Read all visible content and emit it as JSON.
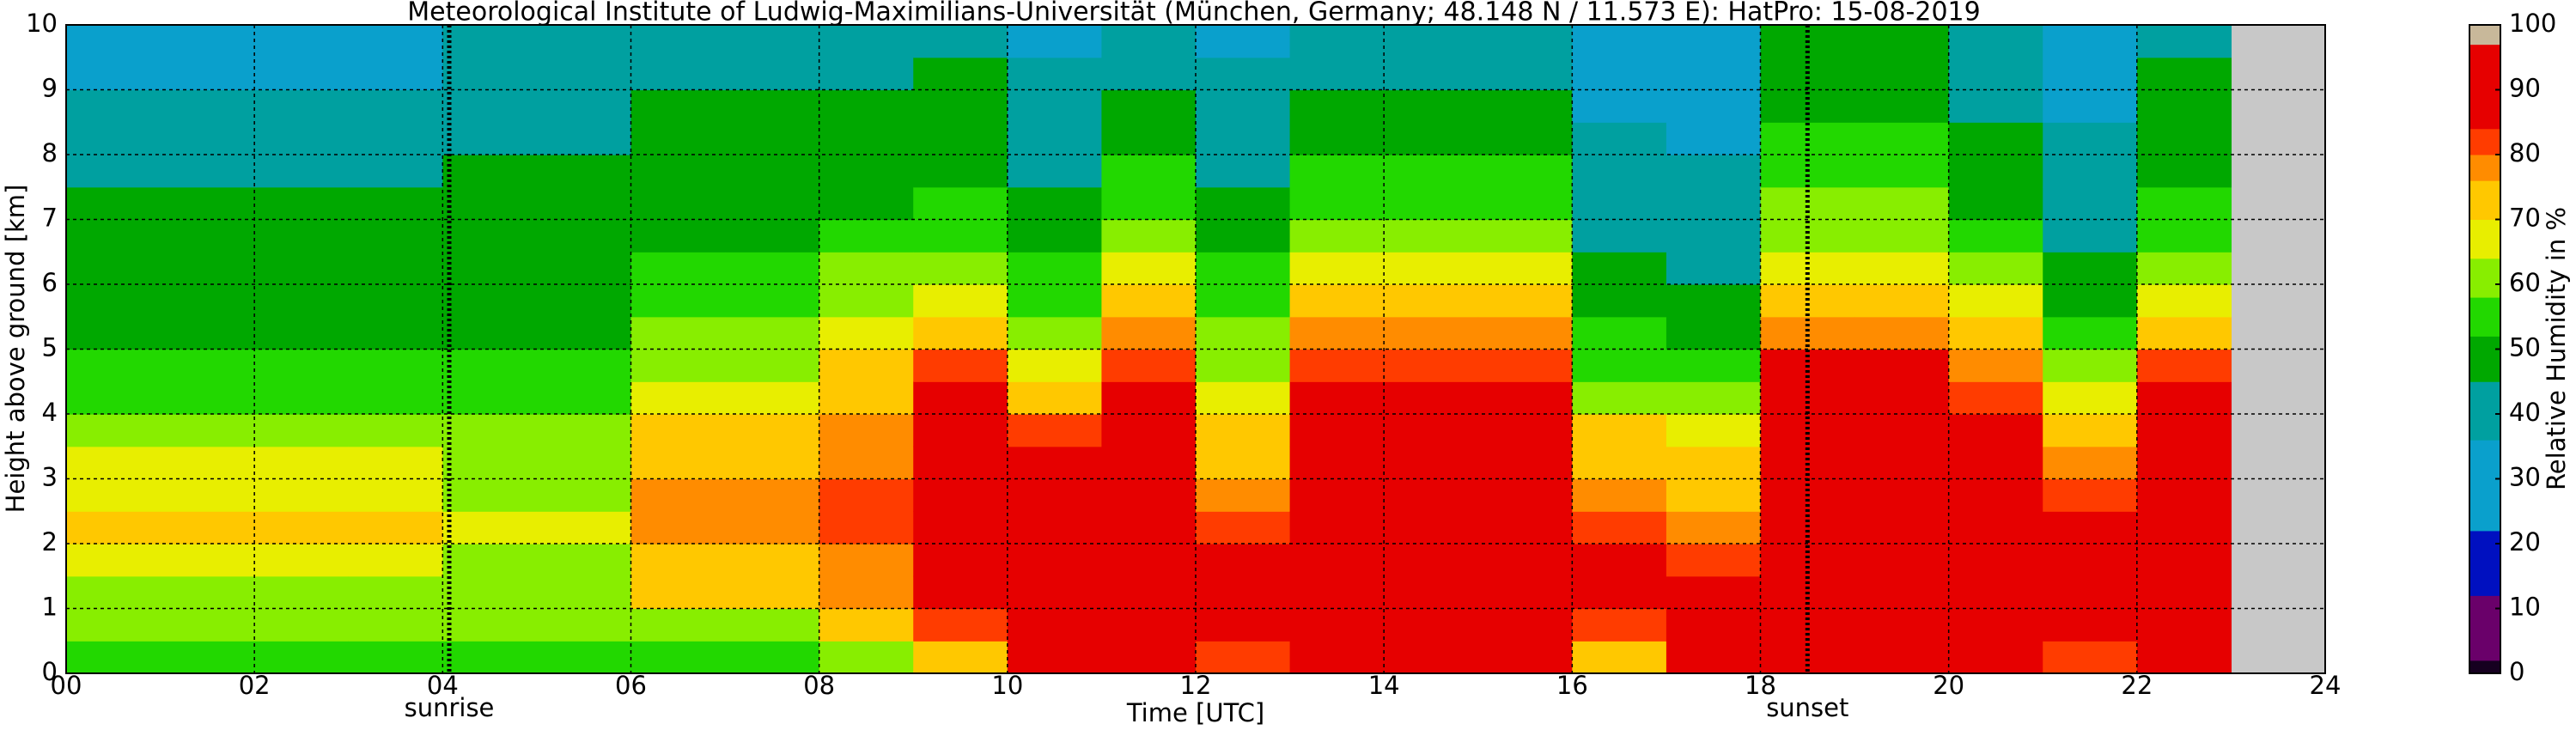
{
  "chart_data": {
    "type": "heatmap",
    "title": "Meteorological Institute of Ludwig-Maximilians-Universität (München, Germany; 48.148 N / 11.573 E):    HatPro: 15-08-2019",
    "xlabel": "Time [UTC]",
    "ylabel": "Height above ground [km]",
    "colorbar_label": "Relative Humidity in %",
    "xlim": [
      0,
      24
    ],
    "ylim": [
      0,
      10
    ],
    "xticks": [
      {
        "value": 0,
        "label": "00"
      },
      {
        "value": 2,
        "label": "02"
      },
      {
        "value": 4,
        "label": "04"
      },
      {
        "value": 6,
        "label": "06"
      },
      {
        "value": 8,
        "label": "08"
      },
      {
        "value": 10,
        "label": "10"
      },
      {
        "value": 12,
        "label": "12"
      },
      {
        "value": 14,
        "label": "14"
      },
      {
        "value": 16,
        "label": "16"
      },
      {
        "value": 18,
        "label": "18"
      },
      {
        "value": 20,
        "label": "20"
      },
      {
        "value": 22,
        "label": "22"
      },
      {
        "value": 24,
        "label": "24"
      }
    ],
    "yticks": [
      0,
      1,
      2,
      3,
      4,
      5,
      6,
      7,
      8,
      9,
      10
    ],
    "grid": true,
    "annotations": [
      {
        "x": 4.07,
        "label": "sunrise"
      },
      {
        "x": 18.5,
        "label": "sunset"
      }
    ],
    "levels": [
      0,
      2,
      12,
      22,
      36,
      45,
      52,
      58,
      64,
      70,
      76,
      80,
      84,
      97,
      100
    ],
    "level_colors": [
      "#160020",
      "#6a006a",
      "#0010c0",
      "#0aa0cc",
      "#00a0a0",
      "#00a800",
      "#22d800",
      "#88ee00",
      "#e8ee00",
      "#ffc800",
      "#ff8c00",
      "#ff3c00",
      "#e60000",
      "#c8b89a"
    ],
    "cbticks": [
      0,
      10,
      20,
      30,
      40,
      50,
      60,
      70,
      80,
      90,
      100
    ],
    "xbins": [
      0,
      1,
      2,
      3,
      4,
      5,
      6,
      7,
      8,
      9,
      10,
      11,
      12,
      13,
      14,
      15,
      16,
      17,
      18,
      19,
      20,
      21,
      22,
      23
    ],
    "ybins": [
      0,
      0.5,
      1,
      1.5,
      2,
      2.5,
      3,
      3.5,
      4,
      4.5,
      5,
      5.5,
      6,
      6.5,
      7,
      7.5,
      8,
      8.5,
      9,
      9.5,
      10
    ],
    "z": [
      [
        55,
        58,
        62,
        66,
        70,
        68,
        64,
        60,
        55,
        52,
        50,
        50,
        48,
        48,
        45,
        43,
        40,
        38,
        35,
        34
      ],
      [
        55,
        58,
        62,
        66,
        70,
        68,
        64,
        60,
        55,
        52,
        50,
        50,
        48,
        48,
        45,
        43,
        40,
        38,
        35,
        34
      ],
      [
        55,
        58,
        62,
        66,
        70,
        68,
        64,
        60,
        55,
        52,
        50,
        50,
        48,
        48,
        45,
        43,
        40,
        38,
        35,
        34
      ],
      [
        55,
        58,
        62,
        66,
        70,
        68,
        64,
        60,
        55,
        52,
        50,
        50,
        48,
        48,
        45,
        43,
        40,
        38,
        35,
        34
      ],
      [
        56,
        58,
        60,
        62,
        64,
        62,
        60,
        58,
        55,
        52,
        50,
        50,
        48,
        48,
        47,
        45,
        44,
        42,
        38,
        36
      ],
      [
        56,
        58,
        60,
        62,
        64,
        62,
        60,
        58,
        55,
        52,
        50,
        50,
        48,
        48,
        47,
        45,
        44,
        42,
        38,
        36
      ],
      [
        52,
        62,
        70,
        75,
        76,
        76,
        74,
        70,
        66,
        62,
        58,
        55,
        52,
        50,
        48,
        47,
        46,
        45,
        44,
        42
      ],
      [
        52,
        62,
        70,
        75,
        76,
        76,
        74,
        70,
        66,
        62,
        58,
        55,
        52,
        50,
        48,
        47,
        46,
        45,
        44,
        42
      ],
      [
        62,
        74,
        78,
        79,
        80,
        80,
        79,
        78,
        74,
        70,
        66,
        62,
        58,
        54,
        50,
        48,
        46,
        45,
        44,
        42
      ],
      [
        72,
        82,
        88,
        90,
        90,
        91,
        90,
        88,
        86,
        80,
        74,
        68,
        62,
        56,
        52,
        50,
        49,
        48,
        46,
        44
      ],
      [
        85,
        92,
        94,
        94,
        92,
        90,
        86,
        80,
        72,
        66,
        60,
        56,
        52,
        48,
        45,
        42,
        40,
        38,
        36,
        35
      ],
      [
        86,
        92,
        94,
        95,
        95,
        94,
        93,
        92,
        88,
        82,
        76,
        72,
        66,
        60,
        56,
        52,
        48,
        46,
        44,
        42
      ],
      [
        80,
        86,
        88,
        86,
        82,
        78,
        74,
        70,
        66,
        62,
        58,
        55,
        52,
        48,
        45,
        42,
        40,
        38,
        36,
        35
      ],
      [
        86,
        92,
        94,
        95,
        95,
        94,
        93,
        92,
        88,
        82,
        76,
        72,
        66,
        60,
        56,
        52,
        48,
        46,
        44,
        42
      ],
      [
        86,
        92,
        94,
        95,
        95,
        94,
        93,
        92,
        88,
        82,
        76,
        72,
        66,
        60,
        56,
        52,
        48,
        46,
        44,
        42
      ],
      [
        86,
        92,
        94,
        95,
        95,
        94,
        93,
        92,
        88,
        82,
        76,
        72,
        66,
        60,
        56,
        52,
        48,
        46,
        44,
        42
      ],
      [
        70,
        80,
        84,
        84,
        82,
        78,
        74,
        70,
        62,
        56,
        52,
        48,
        45,
        42,
        40,
        38,
        36,
        35,
        34,
        33
      ],
      [
        88,
        90,
        84,
        80,
        76,
        74,
        70,
        66,
        60,
        55,
        50,
        46,
        42,
        40,
        38,
        36,
        35,
        34,
        33,
        33
      ],
      [
        90,
        92,
        93,
        94,
        94,
        93,
        92,
        90,
        88,
        84,
        78,
        72,
        66,
        62,
        58,
        54,
        52,
        50,
        48,
        47
      ],
      [
        90,
        92,
        93,
        94,
        94,
        93,
        92,
        90,
        88,
        84,
        78,
        72,
        66,
        62,
        58,
        54,
        52,
        50,
        48,
        47
      ],
      [
        88,
        92,
        94,
        94,
        93,
        92,
        90,
        86,
        82,
        76,
        70,
        64,
        58,
        54,
        50,
        48,
        46,
        44,
        42,
        40
      ],
      [
        82,
        86,
        88,
        88,
        86,
        82,
        78,
        72,
        66,
        60,
        55,
        50,
        46,
        42,
        40,
        38,
        36,
        35,
        34,
        33
      ],
      [
        88,
        92,
        94,
        94,
        93,
        92,
        90,
        88,
        84,
        80,
        74,
        68,
        62,
        56,
        52,
        50,
        48,
        46,
        45,
        44
      ]
    ]
  }
}
